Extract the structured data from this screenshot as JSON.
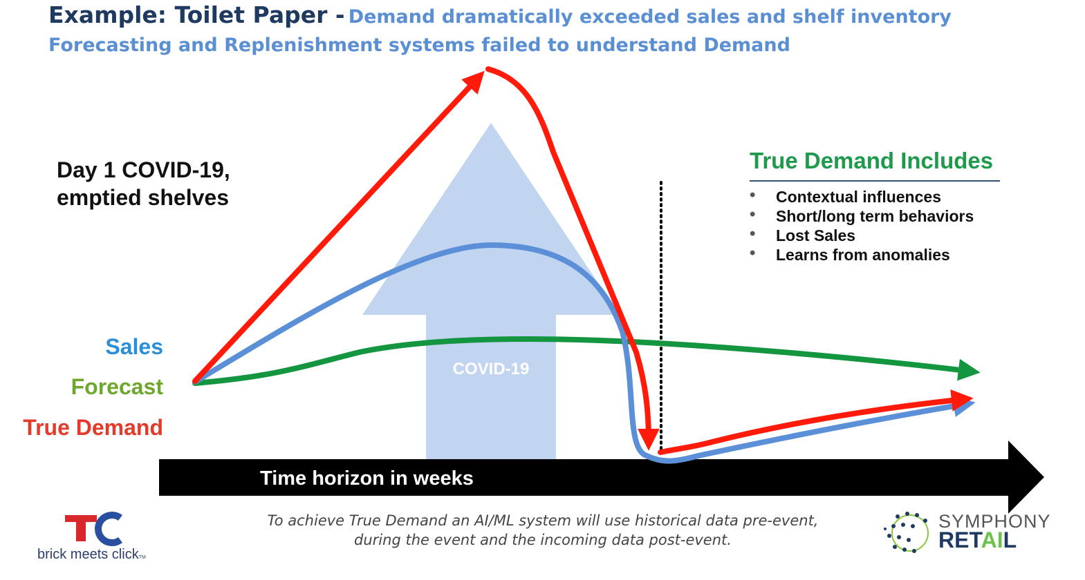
{
  "header": {
    "title_main": "Example: Toilet Paper -",
    "title_sub": "Demand dramatically exceeded sales and shelf inventory",
    "subtitle": "Forecasting and Replenishment systems failed to understand Demand"
  },
  "annotation": {
    "day1_line1": "Day 1 COVID-19,",
    "day1_line2": "emptied shelves"
  },
  "legend": {
    "sales": "Sales",
    "forecast": "Forecast",
    "true_demand": "True Demand"
  },
  "colors": {
    "sales": "#5b8fd8",
    "forecast": "#14953f",
    "true_demand": "#ff1a0a",
    "covid_arrow": "#c2d5f0",
    "time_arrow": "#000000",
    "title_dark": "#1f3a60",
    "title_light": "#5b8fd3"
  },
  "covid_arrow": {
    "label": "COVID-19"
  },
  "time_axis": {
    "label": "Time horizon in weeks"
  },
  "true_demand_box": {
    "title": "True Demand Includes",
    "items": [
      "Contextual influences",
      "Short/long term behaviors",
      "Lost Sales",
      "Learns from anomalies"
    ]
  },
  "footnote": {
    "line1": "To achieve True Demand an AI/ML system will use historical data pre-event,",
    "line2": "during the event and the incoming data post-event."
  },
  "logos": {
    "left_text": "brick meets click",
    "left_tm": "TM",
    "right_symphony": "SYMPHONY",
    "right_retail_1": "RET",
    "right_retail_2": "AI",
    "right_retail_3": "L"
  }
}
